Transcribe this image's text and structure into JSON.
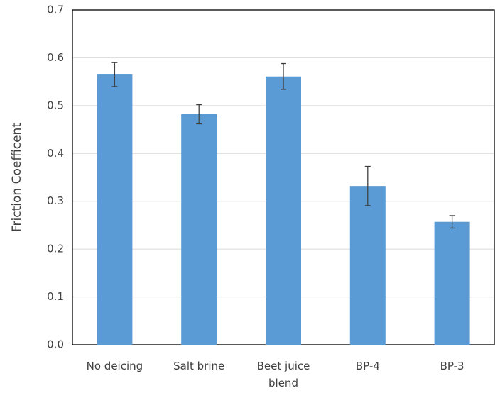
{
  "chart_data": {
    "type": "bar",
    "y_label": "Friction Coefficent",
    "categories": [
      "No deicing",
      "Salt brine",
      "Beet juice blend",
      "BP-4",
      "BP-3"
    ],
    "values": [
      0.565,
      0.482,
      0.561,
      0.332,
      0.257
    ],
    "errors": [
      0.025,
      0.02,
      0.027,
      0.041,
      0.013
    ],
    "color": "#5b9bd5",
    "ylim": [
      0,
      0.7
    ],
    "yticks": [
      {
        "value": 0,
        "label": "0.0"
      },
      0.1,
      0.2,
      0.3,
      0.4,
      0.5,
      0.6,
      0.7
    ],
    "grid": true
  }
}
